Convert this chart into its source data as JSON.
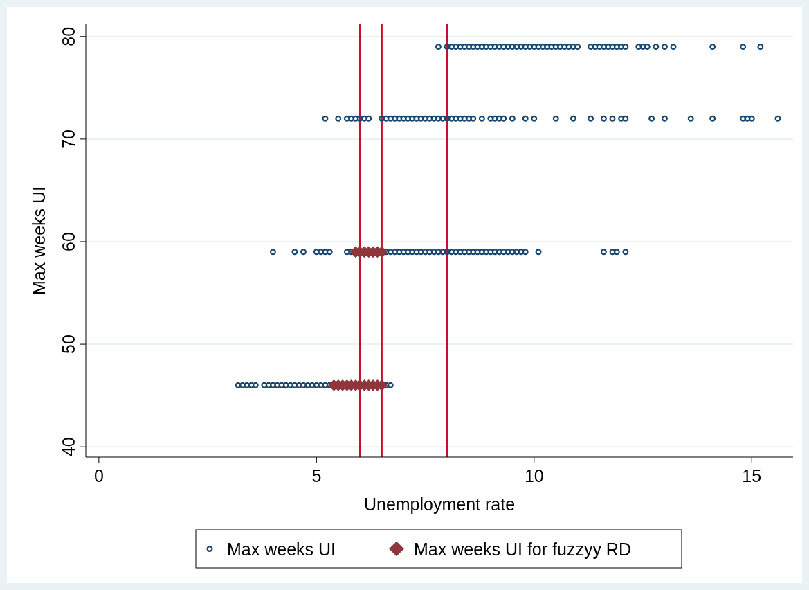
{
  "chart_data": {
    "type": "scatter",
    "xlabel": "Unemployment rate",
    "ylabel": "Max weeks UI",
    "xlim": [
      -0.3,
      15.95
    ],
    "ylim": [
      39,
      81.2
    ],
    "xticks": [
      0,
      5,
      10,
      15
    ],
    "yticks": [
      40,
      50,
      60,
      70,
      80
    ],
    "grid": "y",
    "legend": "bottom",
    "ref_lines": [
      {
        "axis": "x",
        "value": 6.0,
        "color": "#c8102e"
      },
      {
        "axis": "x",
        "value": 6.5,
        "color": "#c8102e"
      },
      {
        "axis": "x",
        "value": 8.0,
        "color": "#c8102e"
      }
    ],
    "series": [
      {
        "name": "Max weeks UI",
        "color": "#1a476f",
        "marker": "circle",
        "x": [
          7.8,
          8.0,
          8.1,
          8.2,
          8.3,
          8.4,
          8.5,
          8.6,
          8.7,
          8.8,
          8.9,
          9.0,
          9.1,
          9.2,
          9.3,
          9.4,
          9.5,
          9.6,
          9.7,
          9.8,
          9.9,
          10.0,
          10.1,
          10.2,
          10.3,
          10.4,
          10.5,
          10.6,
          10.7,
          10.8,
          10.9,
          11.0,
          11.3,
          11.4,
          11.5,
          11.6,
          11.7,
          11.8,
          11.9,
          12.0,
          12.1,
          12.4,
          12.5,
          12.6,
          12.8,
          13.0,
          13.2,
          14.1,
          14.8,
          15.2,
          5.2,
          5.5,
          5.7,
          5.8,
          5.9,
          6.0,
          6.1,
          6.2,
          6.5,
          6.6,
          6.7,
          6.8,
          6.9,
          7.0,
          7.1,
          7.2,
          7.3,
          7.4,
          7.5,
          7.6,
          7.7,
          7.8,
          7.9,
          8.0,
          8.1,
          8.2,
          8.3,
          8.4,
          8.5,
          8.6,
          8.8,
          9.0,
          9.1,
          9.2,
          9.3,
          9.5,
          9.8,
          10.0,
          10.5,
          10.9,
          11.3,
          11.6,
          11.8,
          12.0,
          12.1,
          12.7,
          13.0,
          13.6,
          14.1,
          14.8,
          14.9,
          15.0,
          15.6,
          4.0,
          4.5,
          4.7,
          5.0,
          5.1,
          5.2,
          5.3,
          5.7,
          5.8,
          6.6,
          6.7,
          6.8,
          6.9,
          7.0,
          7.1,
          7.2,
          7.3,
          7.4,
          7.5,
          7.6,
          7.7,
          7.8,
          7.9,
          8.0,
          8.1,
          8.2,
          8.3,
          8.4,
          8.5,
          8.6,
          8.7,
          8.8,
          8.9,
          9.0,
          9.1,
          9.2,
          9.3,
          9.4,
          9.5,
          9.6,
          9.7,
          9.8,
          10.1,
          11.6,
          11.8,
          11.9,
          12.1,
          3.2,
          3.3,
          3.4,
          3.5,
          3.6,
          3.8,
          3.9,
          4.0,
          4.1,
          4.2,
          4.3,
          4.4,
          4.5,
          4.6,
          4.7,
          4.8,
          4.9,
          5.0,
          5.1,
          5.2,
          5.3,
          6.6,
          6.7
        ],
        "values": [
          79,
          79,
          79,
          79,
          79,
          79,
          79,
          79,
          79,
          79,
          79,
          79,
          79,
          79,
          79,
          79,
          79,
          79,
          79,
          79,
          79,
          79,
          79,
          79,
          79,
          79,
          79,
          79,
          79,
          79,
          79,
          79,
          79,
          79,
          79,
          79,
          79,
          79,
          79,
          79,
          79,
          79,
          79,
          79,
          79,
          79,
          79,
          79,
          79,
          79,
          72,
          72,
          72,
          72,
          72,
          72,
          72,
          72,
          72,
          72,
          72,
          72,
          72,
          72,
          72,
          72,
          72,
          72,
          72,
          72,
          72,
          72,
          72,
          72,
          72,
          72,
          72,
          72,
          72,
          72,
          72,
          72,
          72,
          72,
          72,
          72,
          72,
          72,
          72,
          72,
          72,
          72,
          72,
          72,
          72,
          72,
          72,
          72,
          72,
          72,
          72,
          72,
          72,
          59,
          59,
          59,
          59,
          59,
          59,
          59,
          59,
          59,
          59,
          59,
          59,
          59,
          59,
          59,
          59,
          59,
          59,
          59,
          59,
          59,
          59,
          59,
          59,
          59,
          59,
          59,
          59,
          59,
          59,
          59,
          59,
          59,
          59,
          59,
          59,
          59,
          59,
          59,
          59,
          59,
          59,
          59,
          59,
          59,
          59,
          59,
          46,
          46,
          46,
          46,
          46,
          46,
          46,
          46,
          46,
          46,
          46,
          46,
          46,
          46,
          46,
          46,
          46,
          46,
          46,
          46,
          46,
          46,
          46
        ]
      },
      {
        "name": "Max weeks UI for fuzzyy RD",
        "color": "#90353b",
        "marker": "diamond",
        "x": [
          5.9,
          6.0,
          6.1,
          6.2,
          6.3,
          6.4,
          6.5,
          5.4,
          5.5,
          5.6,
          5.7,
          5.8,
          5.9,
          6.0,
          6.1,
          6.2,
          6.3,
          6.4,
          6.5
        ],
        "values": [
          59,
          59,
          59,
          59,
          59,
          59,
          59,
          46,
          46,
          46,
          46,
          46,
          46,
          46,
          46,
          46,
          46,
          46,
          46
        ]
      }
    ]
  }
}
